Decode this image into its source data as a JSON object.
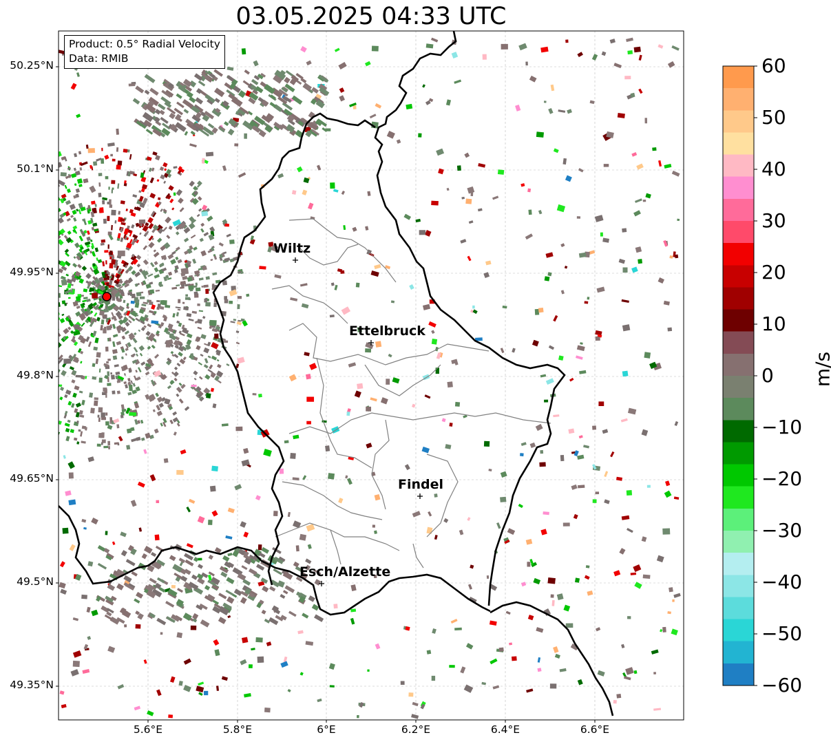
{
  "title": "03.05.2025 04:33 UTC",
  "info": {
    "product": "Product: 0.5° Radial Velocity",
    "source": "Data: RMIB"
  },
  "colorbar": {
    "label": "m/s",
    "ticks": [
      "60",
      "50",
      "40",
      "30",
      "20",
      "10",
      "0",
      "−10",
      "−20",
      "−30",
      "−40",
      "−50",
      "−60"
    ],
    "stops": [
      "#ff9a4d",
      "#ffb070",
      "#ffc98a",
      "#ffe0a0",
      "#ffb9c4",
      "#ff8ed0",
      "#ff6b9a",
      "#ff4a6a",
      "#f20000",
      "#c80000",
      "#a00000",
      "#6e0000",
      "#844b55",
      "#867070",
      "#7a8070",
      "#5c8a5c",
      "#006a00",
      "#009a00",
      "#00c800",
      "#1fe81f",
      "#5cf07a",
      "#90f0b0",
      "#b4eef0",
      "#8ce6e6",
      "#5cdcdc",
      "#2ad6d6",
      "#22b4d2",
      "#1f7fc4"
    ]
  },
  "axes": {
    "lat_labels": [
      "50.25°N",
      "50.1°N",
      "49.95°N",
      "49.8°N",
      "49.65°N",
      "49.5°N",
      "49.35°N"
    ],
    "lon_labels": [
      "5.6°E",
      "5.8°E",
      "6°E",
      "6.2°E",
      "6.4°E",
      "6.6°E"
    ]
  },
  "cities": [
    {
      "name": "Wiltz"
    },
    {
      "name": "Ettelbruck"
    },
    {
      "name": "Findel"
    },
    {
      "name": "Esch/Alzette"
    }
  ],
  "colors": {
    "border": "#000000",
    "canton": "#808080",
    "grid": "#bbbbbb",
    "radar_site": "#ff0000"
  },
  "legend_icons": [
    "radar-site-icon",
    "city-marker-icon"
  ]
}
